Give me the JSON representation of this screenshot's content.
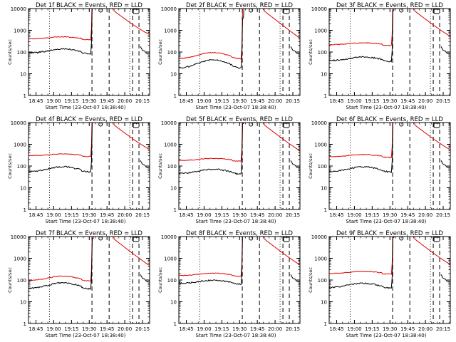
{
  "chart_data": {
    "type": "line",
    "scale": "log",
    "ylim": [
      1,
      10000
    ],
    "ytick_labels": [
      "1",
      "10",
      "100",
      "1000",
      "10000"
    ],
    "ylabel": "Counts/sec",
    "xlabel": "Start Time (23-Oct-07 18:38:40)",
    "xlim_hours": [
      18.6444,
      20.35
    ],
    "xtick_labels": [
      "18:45",
      "19:00",
      "19:15",
      "19:30",
      "19:45",
      "20:00",
      "20:15"
    ],
    "colors": {
      "events": "#000000",
      "lld": "#e00000"
    },
    "panels": [
      {
        "title": "Det 1f BLACK = Events, RED = LLD",
        "events_base": 90,
        "lld_base": 400,
        "events_bump": 1.55,
        "lld_bump": 1.25
      },
      {
        "title": "Det 2f BLACK = Events, RED = LLD",
        "events_base": 18,
        "lld_base": 50,
        "events_bump": 2.4,
        "lld_bump": 1.9
      },
      {
        "title": "Det 3f BLACK = Events, RED = LLD",
        "events_base": 40,
        "lld_base": 220,
        "events_bump": 1.5,
        "lld_bump": 1.2
      },
      {
        "title": "Det 4f BLACK = Events, RED = LLD",
        "events_base": 55,
        "lld_base": 300,
        "events_bump": 1.7,
        "lld_bump": 1.2
      },
      {
        "title": "Det 5f BLACK = Events, RED = LLD",
        "events_base": 45,
        "lld_base": 180,
        "events_bump": 1.6,
        "lld_bump": 1.25
      },
      {
        "title": "Det 6f BLACK = Events, RED = LLD",
        "events_base": 55,
        "lld_base": 270,
        "events_bump": 1.7,
        "lld_bump": 1.25
      },
      {
        "title": "Det 7f BLACK = Events, RED = LLD",
        "events_base": 40,
        "lld_base": 95,
        "events_bump": 1.9,
        "lld_bump": 1.6
      },
      {
        "title": "Det 8f BLACK = Events, RED = LLD",
        "events_base": 70,
        "lld_base": 160,
        "events_bump": 1.4,
        "lld_bump": 1.3
      },
      {
        "title": "Det 9f BLACK = Events, RED = LLD",
        "events_base": 45,
        "lld_base": 200,
        "events_bump": 1.6,
        "lld_bump": 1.25
      }
    ]
  }
}
